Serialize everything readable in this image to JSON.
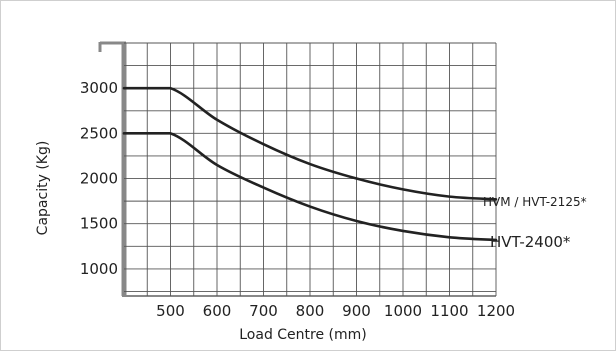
{
  "chart_data": {
    "type": "line",
    "title": "",
    "xlabel": "Load Centre (mm)",
    "ylabel": "Capacity (Kg)",
    "xlim": [
      400,
      1200
    ],
    "ylim": [
      700,
      3500
    ],
    "x_ticks": [
      500,
      600,
      700,
      800,
      900,
      1000,
      1100,
      1200
    ],
    "y_ticks": [
      1000,
      1500,
      2000,
      2500,
      3000
    ],
    "grid": true,
    "series": [
      {
        "name": "HVM / HVT-2125*",
        "x": [
          400,
          500,
          600,
          700,
          800,
          900,
          1000,
          1100,
          1200
        ],
        "y": [
          3000,
          3000,
          2650,
          2380,
          2160,
          2000,
          1880,
          1800,
          1770
        ]
      },
      {
        "name": "HVT-2400*",
        "x": [
          400,
          500,
          600,
          700,
          800,
          900,
          1000,
          1100,
          1200
        ],
        "y": [
          2500,
          2500,
          2150,
          1900,
          1690,
          1530,
          1420,
          1350,
          1320
        ]
      }
    ],
    "colors": {
      "line": "#222222",
      "grid": "#555555",
      "axis": "#888888"
    }
  }
}
